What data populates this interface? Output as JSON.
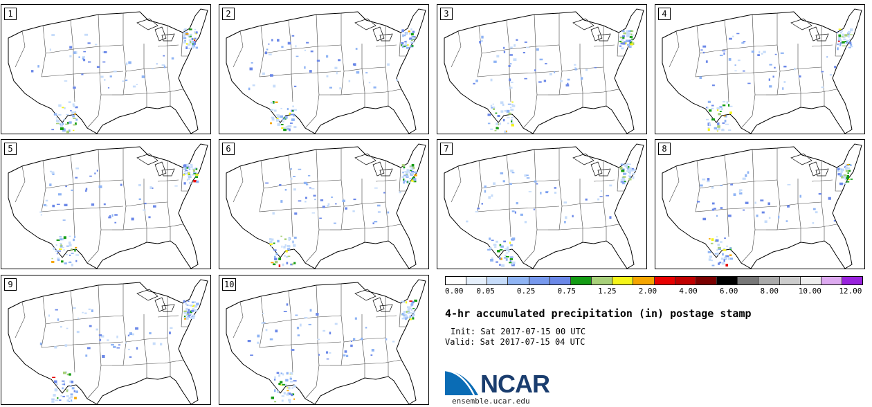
{
  "stamps": [
    {
      "label": "1"
    },
    {
      "label": "2"
    },
    {
      "label": "3"
    },
    {
      "label": "4"
    },
    {
      "label": "5"
    },
    {
      "label": "6"
    },
    {
      "label": "7"
    },
    {
      "label": "8"
    },
    {
      "label": "9"
    },
    {
      "label": "10"
    }
  ],
  "colorbar": {
    "colors": [
      "#ffffff",
      "#e6f0fc",
      "#c6dcfa",
      "#8fb4f4",
      "#7799ee",
      "#6b88e8",
      "#149c14",
      "#a8d07a",
      "#f5f519",
      "#f5a500",
      "#e80000",
      "#c00000",
      "#7a0000",
      "#000000",
      "#777777",
      "#aaaaaa",
      "#cccccc",
      "#eeeeee",
      "#ddaaf0",
      "#9922dd"
    ],
    "ticks": [
      "0.00",
      "0.05",
      "0.25",
      "0.75",
      "1.25",
      "2.00",
      "4.00",
      "6.00",
      "8.00",
      "10.00",
      "12.00"
    ]
  },
  "title": "4-hr accumulated precipitation (in) postage stamp",
  "init": "Init: Sat 2017-07-15 00 UTC",
  "valid": "Valid: Sat 2017-07-15 04 UTC",
  "logo": {
    "text": "NCAR",
    "color": "#0a6cb5"
  },
  "site": "ensemble.ucar.edu"
}
